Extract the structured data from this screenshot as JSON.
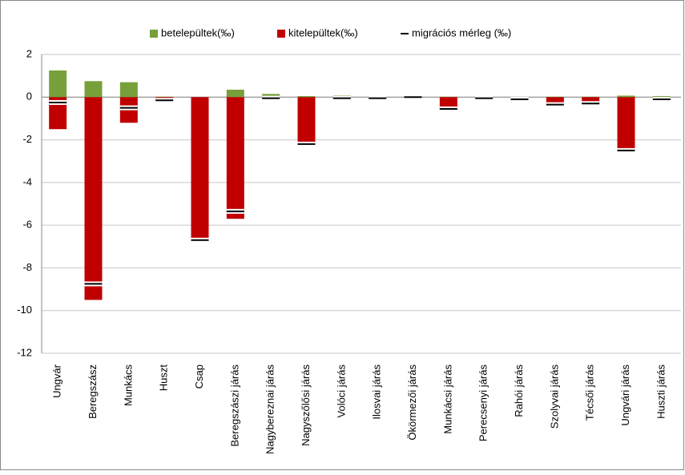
{
  "chart_data": {
    "type": "bar",
    "categories": [
      "Ungvár",
      "Beregszász",
      "Munkács",
      "Huszt",
      "Csap",
      "Beregszászi járás",
      "Nagybereznai járás",
      "Nagyszőlősi járás",
      "Volóci járás",
      "Ilosvai járás",
      "Ökörmezői járás",
      "Munkácsi járás",
      "Perecsenyi járás",
      "Rahói járás",
      "Szolyvai járás",
      "Técsői járás",
      "Ungvári járás",
      "Huszti járás"
    ],
    "series": [
      {
        "name": "betelepültek(‰)",
        "color": "#77a03a",
        "values": [
          1.25,
          0.75,
          0.7,
          0.02,
          0,
          0.35,
          0.15,
          0.05,
          0.08,
          0.02,
          0.02,
          0.02,
          0.01,
          0.01,
          0.02,
          0.02,
          0.07,
          0.05
        ]
      },
      {
        "name": "kitelepültek(‰)",
        "color": "#c00000",
        "values": [
          -1.5,
          -9.5,
          -1.2,
          -0.1,
          -6.7,
          -5.7,
          -0.1,
          -2.25,
          -0.05,
          -0.1,
          -0.02,
          -0.6,
          -0.05,
          -0.1,
          -0.35,
          -0.3,
          -2.55,
          -0.1
        ]
      },
      {
        "name": "migrációs mérleg (‰)",
        "color": "#000000",
        "values": [
          -0.25,
          -8.75,
          -0.5,
          -0.15,
          -6.7,
          -5.35,
          -0.05,
          -2.2,
          -0.05,
          -0.05,
          0,
          -0.55,
          -0.05,
          -0.1,
          -0.35,
          -0.3,
          -2.5,
          -0.1
        ]
      }
    ],
    "ylim": [
      -12,
      2
    ],
    "yticks": [
      -12,
      -10,
      -8,
      -6,
      -4,
      -2,
      0,
      2
    ],
    "grid": true,
    "legend": "top"
  }
}
